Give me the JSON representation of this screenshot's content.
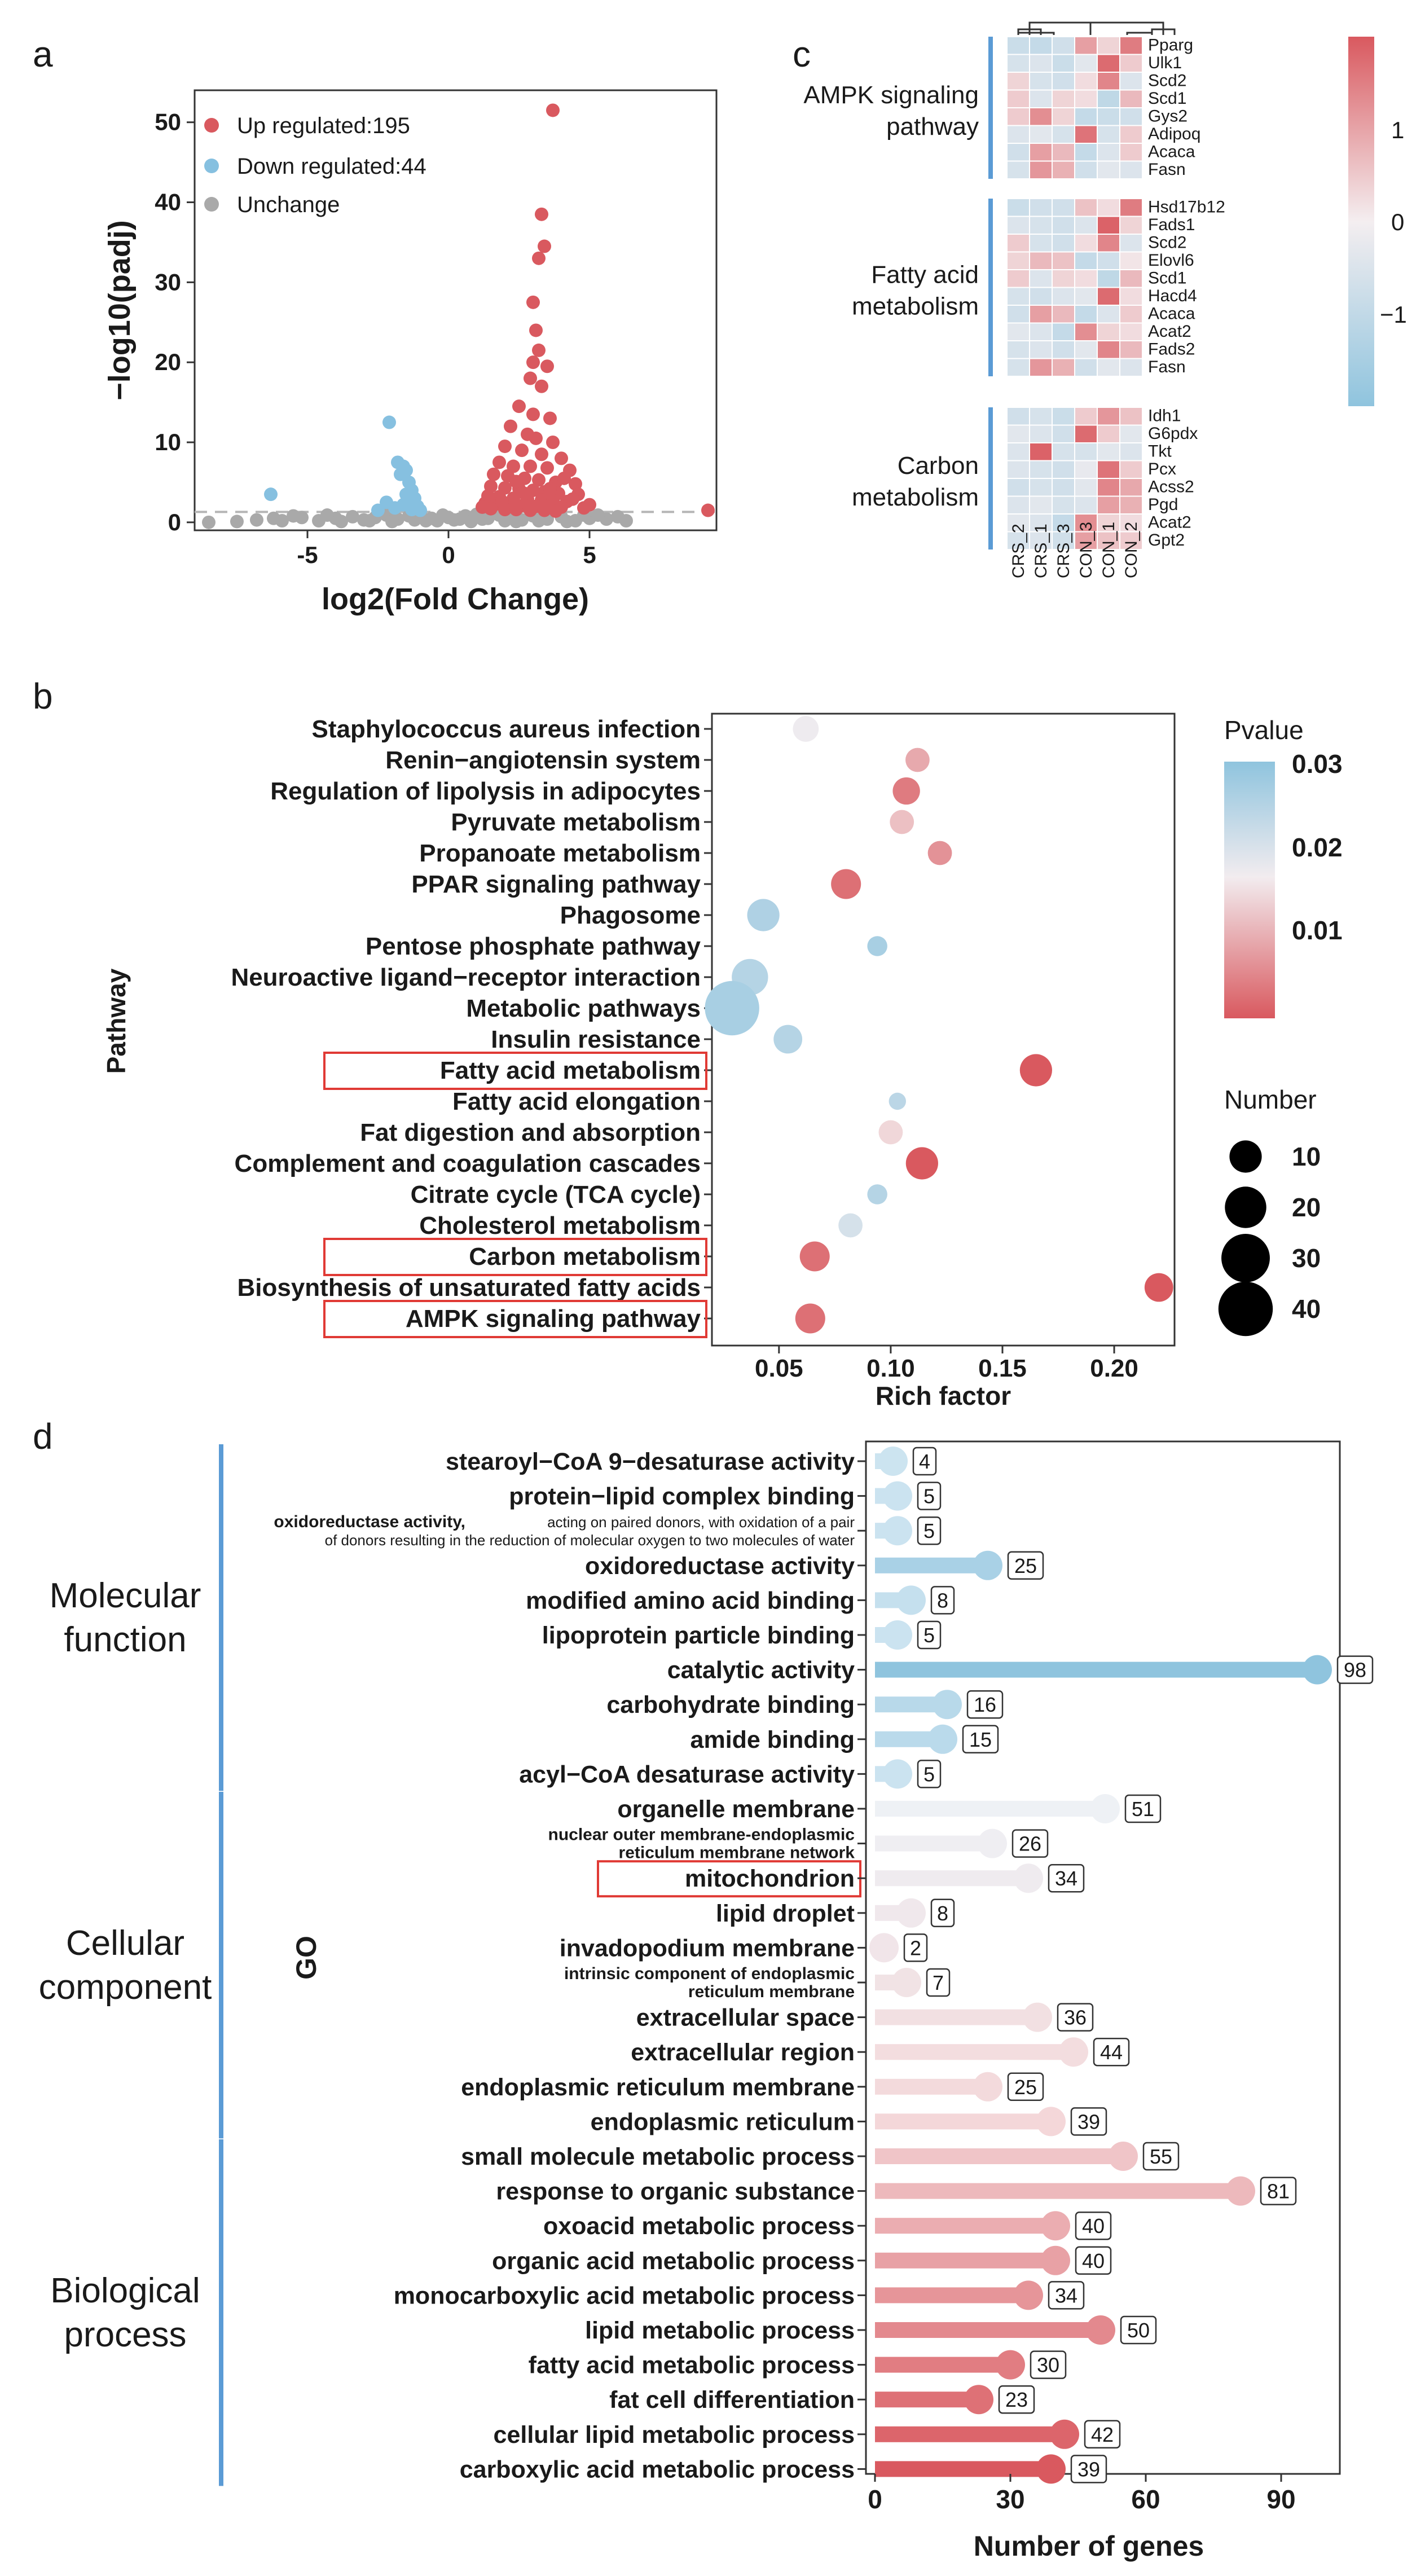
{
  "panels": {
    "a": "a",
    "b": "b",
    "c": "c",
    "d": "d"
  },
  "volcano": {
    "type": "scatter",
    "xlabel": "log2(Fold Change)",
    "ylabel": "−log10(padj)",
    "xlim": [
      -9,
      9.5
    ],
    "ylim": [
      -1,
      54
    ],
    "xticks": [
      -5,
      0,
      5
    ],
    "yticks": [
      0,
      10,
      20,
      30,
      40,
      50
    ],
    "threshold": 1.3,
    "legend": [
      {
        "label": "Up regulated:195",
        "color": "#d9595f"
      },
      {
        "label": "Down regulated:44",
        "color": "#86c0e0"
      },
      {
        "label": "Unchange",
        "color": "#a9a9a9"
      }
    ],
    "up": [
      [
        3.7,
        51.5
      ],
      [
        3.3,
        38.5
      ],
      [
        3.4,
        34.5
      ],
      [
        3.2,
        33
      ],
      [
        3.0,
        27.5
      ],
      [
        3.1,
        24
      ],
      [
        3.2,
        21.5
      ],
      [
        3.0,
        20
      ],
      [
        3.5,
        19.5
      ],
      [
        2.9,
        18
      ],
      [
        3.3,
        17
      ],
      [
        2.5,
        14.5
      ],
      [
        3.0,
        13.5
      ],
      [
        3.6,
        13
      ],
      [
        2.2,
        12
      ],
      [
        2.8,
        11
      ],
      [
        3.1,
        10.5
      ],
      [
        3.7,
        10
      ],
      [
        2.0,
        9.5
      ],
      [
        2.6,
        9
      ],
      [
        3.3,
        8.5
      ],
      [
        4.0,
        8
      ],
      [
        1.8,
        7.5
      ],
      [
        2.3,
        7
      ],
      [
        2.9,
        7
      ],
      [
        3.5,
        6.8
      ],
      [
        4.3,
        6.5
      ],
      [
        1.6,
        6
      ],
      [
        2.1,
        5.8
      ],
      [
        2.7,
        5.5
      ],
      [
        3.2,
        5.3
      ],
      [
        3.8,
        5
      ],
      [
        4.5,
        4.8
      ],
      [
        1.5,
        4.5
      ],
      [
        2.0,
        4.3
      ],
      [
        2.5,
        4.2
      ],
      [
        3.0,
        4
      ],
      [
        3.4,
        3.8
      ],
      [
        3.9,
        3.6
      ],
      [
        4.6,
        3.5
      ],
      [
        1.4,
        3.3
      ],
      [
        1.8,
        3.2
      ],
      [
        2.3,
        3
      ],
      [
        2.8,
        2.9
      ],
      [
        3.3,
        2.8
      ],
      [
        3.7,
        2.7
      ],
      [
        4.2,
        2.6
      ],
      [
        1.3,
        2.4
      ],
      [
        1.7,
        2.3
      ],
      [
        2.2,
        2.2
      ],
      [
        2.6,
        2.1
      ],
      [
        3.1,
        2
      ],
      [
        3.5,
        2
      ],
      [
        4.0,
        1.9
      ],
      [
        4.8,
        1.8
      ],
      [
        1.5,
        1.7
      ],
      [
        2.0,
        1.6
      ],
      [
        2.4,
        1.6
      ],
      [
        2.9,
        1.5
      ],
      [
        3.4,
        1.5
      ],
      [
        3.8,
        1.4
      ],
      [
        9.2,
        1.5
      ],
      [
        5.0,
        2.2
      ],
      [
        1.9,
        2.6
      ],
      [
        2.7,
        3.6
      ],
      [
        3.6,
        4.2
      ],
      [
        4.1,
        5.5
      ],
      [
        2.4,
        5.1
      ],
      [
        1.2,
        1.9
      ],
      [
        4.4,
        2.9
      ]
    ],
    "down": [
      [
        -2.1,
        12.5
      ],
      [
        -1.8,
        7.5
      ],
      [
        -1.6,
        7
      ],
      [
        -1.5,
        6.5
      ],
      [
        -1.7,
        6
      ],
      [
        -1.4,
        5
      ],
      [
        -1.3,
        4
      ],
      [
        -1.5,
        3.5
      ],
      [
        -1.2,
        3
      ],
      [
        -1.4,
        2.6
      ],
      [
        -2.2,
        2.5
      ],
      [
        -1.6,
        2.2
      ],
      [
        -6.3,
        3.5
      ],
      [
        -1.1,
        2
      ],
      [
        -1.9,
        1.8
      ],
      [
        -1.3,
        1.6
      ],
      [
        -2.5,
        1.5
      ],
      [
        -1.0,
        1.5
      ]
    ],
    "unchange": [
      [
        -8.5,
        0
      ],
      [
        -6.8,
        0.3
      ],
      [
        -5.9,
        0.2
      ],
      [
        -5.2,
        0.6
      ],
      [
        -4.6,
        0.2
      ],
      [
        -4.0,
        0.5
      ],
      [
        -3.4,
        0.7
      ],
      [
        -3.0,
        0.3
      ],
      [
        -2.6,
        0.6
      ],
      [
        -2.2,
        0.9
      ],
      [
        -1.8,
        0.4
      ],
      [
        -1.4,
        0.8
      ],
      [
        -1.0,
        1.0
      ],
      [
        -0.6,
        0.5
      ],
      [
        -0.2,
        0.9
      ],
      [
        0.2,
        0.3
      ],
      [
        0.6,
        0.8
      ],
      [
        1.0,
        1.0
      ],
      [
        1.4,
        0.5
      ],
      [
        1.8,
        0.9
      ],
      [
        2.2,
        0.6
      ],
      [
        2.6,
        0.3
      ],
      [
        3.0,
        0.8
      ],
      [
        3.5,
        0.4
      ],
      [
        4.0,
        0.7
      ],
      [
        4.5,
        0.2
      ],
      [
        5.0,
        0.5
      ],
      [
        5.6,
        0.4
      ],
      [
        6.3,
        0.2
      ],
      [
        -7.5,
        0.1
      ],
      [
        -3.8,
        0.1
      ],
      [
        -2.0,
        0.1
      ],
      [
        -0.8,
        0.2
      ],
      [
        0.8,
        0.1
      ],
      [
        2.4,
        0.1
      ],
      [
        4.2,
        0.1
      ],
      [
        -5.5,
        0.8
      ],
      [
        5.3,
        0.9
      ],
      [
        -1.2,
        0.3
      ],
      [
        1.2,
        0.4
      ],
      [
        0.0,
        0.6
      ],
      [
        -0.4,
        0.2
      ],
      [
        0.4,
        0.4
      ],
      [
        2.0,
        0.2
      ],
      [
        -2.8,
        0.2
      ],
      [
        3.2,
        0.2
      ],
      [
        -4.3,
        0.9
      ],
      [
        4.8,
        0.9
      ],
      [
        6.0,
        0.7
      ],
      [
        -6.2,
        0.5
      ]
    ]
  },
  "heatmap": {
    "type": "heatmap",
    "columns": [
      "CRS_2",
      "CRS_1",
      "CRS_3",
      "CON_3",
      "CON_1",
      "CON_2"
    ],
    "legend_ticks": [
      "1",
      "0",
      "−1"
    ],
    "groups": [
      {
        "name_line1": "AMPK signaling",
        "name_line2": "pathway",
        "genes": [
          "Pparg",
          "Ulk1",
          "Scd2",
          "Scd1",
          "Gys2",
          "Adipoq",
          "Acaca",
          "Fasn"
        ],
        "values": [
          [
            -0.7,
            -0.8,
            -0.6,
            0.9,
            0.3,
            1.3
          ],
          [
            -0.5,
            -0.4,
            -0.7,
            -0.3,
            1.5,
            0.4
          ],
          [
            0.3,
            -0.5,
            -0.6,
            0.2,
            1.2,
            -0.4
          ],
          [
            0.4,
            -0.4,
            0.3,
            0.2,
            -0.9,
            0.6
          ],
          [
            0.4,
            1.1,
            0.3,
            -0.8,
            -0.7,
            -0.6
          ],
          [
            -0.4,
            -0.3,
            -0.5,
            1.4,
            -0.5,
            0.4
          ],
          [
            -0.6,
            0.9,
            0.6,
            -0.8,
            -0.4,
            0.4
          ],
          [
            -0.5,
            1.0,
            0.7,
            -0.6,
            -0.3,
            -0.4
          ]
        ]
      },
      {
        "name_line1": "Fatty acid",
        "name_line2": "metabolism",
        "genes": [
          "Hsd17b12",
          "Fads1",
          "Scd2",
          "Elovl6",
          "Scd1",
          "Hacd4",
          "Acaca",
          "Acat2",
          "Fads2",
          "Fasn"
        ],
        "values": [
          [
            -0.7,
            -0.6,
            -0.6,
            0.5,
            0.2,
            1.3
          ],
          [
            -0.4,
            -0.5,
            -0.6,
            -0.4,
            1.6,
            0.3
          ],
          [
            0.4,
            -0.5,
            -0.6,
            0.2,
            1.2,
            -0.4
          ],
          [
            0.3,
            0.6,
            0.5,
            -0.8,
            -0.6,
            0.1
          ],
          [
            0.4,
            -0.4,
            0.3,
            0.2,
            -0.9,
            0.6
          ],
          [
            -0.5,
            -0.6,
            -0.4,
            -0.3,
            1.5,
            0.2
          ],
          [
            -0.6,
            0.9,
            0.6,
            -0.8,
            -0.4,
            0.4
          ],
          [
            -0.3,
            -0.4,
            -0.8,
            1.1,
            0.3,
            0.2
          ],
          [
            -0.5,
            -0.4,
            -0.6,
            -0.3,
            1.2,
            0.6
          ],
          [
            -0.5,
            1.0,
            0.7,
            -0.6,
            -0.3,
            -0.4
          ]
        ]
      },
      {
        "name_line1": "Carbon",
        "name_line2": "metabolism",
        "genes": [
          "Idh1",
          "G6pdx",
          "Tkt",
          "Pcx",
          "Acss2",
          "Pgd",
          "Acat2",
          "Gpt2"
        ],
        "values": [
          [
            -0.6,
            -0.5,
            -0.7,
            0.4,
            1.0,
            0.5
          ],
          [
            -0.3,
            -0.4,
            -0.6,
            1.5,
            0.4,
            -0.3
          ],
          [
            -0.4,
            1.6,
            -0.5,
            -0.5,
            -0.3,
            -0.4
          ],
          [
            -0.4,
            -0.5,
            -0.6,
            -0.2,
            1.4,
            0.4
          ],
          [
            -0.6,
            -0.5,
            -0.6,
            -0.3,
            1.2,
            0.8
          ],
          [
            -0.4,
            -0.3,
            -0.5,
            -0.4,
            0.9,
            0.7
          ],
          [
            -0.3,
            -0.4,
            -0.8,
            1.1,
            0.3,
            0.2
          ],
          [
            -0.5,
            -0.4,
            -0.6,
            0.9,
            0.5,
            0.4
          ]
        ]
      }
    ]
  },
  "kegg": {
    "type": "scatter",
    "xlabel": "Rich factor",
    "ylabel": "Pathway",
    "xlim": [
      0.02,
      0.227
    ],
    "xticks": [
      "0.05",
      "0.10",
      "0.15",
      "0.20"
    ],
    "xtick_values": [
      0.05,
      0.1,
      0.15,
      0.2
    ],
    "pvalue_legend_title": "Pvalue",
    "pvalue_ticks": [
      "0.03",
      "0.02",
      "0.01"
    ],
    "number_legend_title": "Number",
    "number_ticks": [
      "10",
      "20",
      "30",
      "40"
    ],
    "pathways": [
      {
        "name": "Staphylococcus aureus infection",
        "rich": 0.062,
        "count": 5,
        "p": 0.015,
        "highlight": false
      },
      {
        "name": "Renin−angiotensin system",
        "rich": 0.112,
        "count": 4,
        "p": 0.008,
        "highlight": false
      },
      {
        "name": "Regulation of lipolysis in adipocytes",
        "rich": 0.107,
        "count": 6,
        "p": 0.004,
        "highlight": false
      },
      {
        "name": "Pyruvate metabolism",
        "rich": 0.105,
        "count": 4,
        "p": 0.01,
        "highlight": false
      },
      {
        "name": "Propanoate metabolism",
        "rich": 0.122,
        "count": 4,
        "p": 0.006,
        "highlight": false
      },
      {
        "name": "PPAR signaling pathway",
        "rich": 0.08,
        "count": 8,
        "p": 0.003,
        "highlight": false
      },
      {
        "name": "Phagosome",
        "rich": 0.043,
        "count": 10,
        "p": 0.025,
        "highlight": false
      },
      {
        "name": "Pentose phosphate pathway",
        "rich": 0.094,
        "count": 2,
        "p": 0.026,
        "highlight": false
      },
      {
        "name": "Neuroactive ligand−receptor interaction",
        "rich": 0.037,
        "count": 14,
        "p": 0.024,
        "highlight": false
      },
      {
        "name": "Metabolic pathways",
        "rich": 0.029,
        "count": 40,
        "p": 0.026,
        "highlight": false
      },
      {
        "name": "Insulin resistance",
        "rich": 0.054,
        "count": 7,
        "p": 0.024,
        "highlight": false
      },
      {
        "name": "Fatty acid metabolism",
        "rich": 0.165,
        "count": 10,
        "p": 0.001,
        "highlight": true
      },
      {
        "name": "Fatty acid elongation",
        "rich": 0.103,
        "count": 1,
        "p": 0.023,
        "highlight": false
      },
      {
        "name": "Fat digestion and absorption",
        "rich": 0.1,
        "count": 4,
        "p": 0.012,
        "highlight": false
      },
      {
        "name": "Complement and coagulation cascades",
        "rich": 0.114,
        "count": 10,
        "p": 0.001,
        "highlight": false
      },
      {
        "name": "Citrate cycle (TCA cycle)",
        "rich": 0.094,
        "count": 2,
        "p": 0.024,
        "highlight": false
      },
      {
        "name": "Cholesterol metabolism",
        "rich": 0.082,
        "count": 4,
        "p": 0.019,
        "highlight": false
      },
      {
        "name": "Carbon metabolism",
        "rich": 0.066,
        "count": 8,
        "p": 0.003,
        "highlight": true
      },
      {
        "name": "Biosynthesis of unsaturated fatty acids",
        "rich": 0.22,
        "count": 7,
        "p": 0.001,
        "highlight": false
      },
      {
        "name": "AMPK signaling pathway",
        "rich": 0.064,
        "count": 8,
        "p": 0.003,
        "highlight": true
      }
    ]
  },
  "go": {
    "type": "bar",
    "xlabel": "Number of genes",
    "ylabel": "GO",
    "xticks": [
      "0",
      "30",
      "60",
      "90"
    ],
    "xtick_values": [
      0,
      30,
      60,
      90
    ],
    "xlim": [
      -2,
      103
    ],
    "categories": [
      {
        "line1": "Molecular",
        "line2": "function",
        "start": 0,
        "end": 9
      },
      {
        "line1": "Cellular",
        "line2": "component",
        "start": 10,
        "end": 19
      },
      {
        "line1": "Biological",
        "line2": "process",
        "start": 20,
        "end": 29
      }
    ],
    "terms": [
      {
        "name": "stearoyl−CoA 9−desaturase activity",
        "count": 4,
        "style": "normal"
      },
      {
        "name": "protein−lipid complex binding",
        "count": 5,
        "style": "normal"
      },
      {
        "name": "oxidoreductase activity,",
        "name_rest": " acting on paired donors, with oxidation of a pair",
        "name2": "of donors resulting in the reduction of molecular oxygen to two molecules of water",
        "count": 5,
        "style": "small"
      },
      {
        "name": "oxidoreductase activity",
        "count": 25,
        "style": "normal"
      },
      {
        "name": "modified amino acid binding",
        "count": 8,
        "style": "normal"
      },
      {
        "name": "lipoprotein particle binding",
        "count": 5,
        "style": "normal"
      },
      {
        "name": "catalytic activity",
        "count": 98,
        "style": "normal"
      },
      {
        "name": "carbohydrate binding",
        "count": 16,
        "style": "normal"
      },
      {
        "name": "amide binding",
        "count": 15,
        "style": "normal"
      },
      {
        "name": "acyl−CoA desaturase activity",
        "count": 5,
        "style": "normal"
      },
      {
        "name": "organelle membrane",
        "count": 51,
        "style": "normal"
      },
      {
        "name": "nuclear outer membrane-endoplasmic",
        "name2": "reticulum membrane network",
        "count": 26,
        "style": "small"
      },
      {
        "name": "mitochondrion",
        "count": 34,
        "style": "highlight"
      },
      {
        "name": "lipid droplet",
        "count": 8,
        "style": "normal"
      },
      {
        "name": "invadopodium membrane",
        "count": 2,
        "style": "normal"
      },
      {
        "name": "intrinsic component of endoplasmic",
        "name2": "reticulum membrane",
        "count": 7,
        "style": "small"
      },
      {
        "name": "extracellular space",
        "count": 36,
        "style": "normal"
      },
      {
        "name": "extracellular region",
        "count": 44,
        "style": "normal"
      },
      {
        "name": "endoplasmic reticulum membrane",
        "count": 25,
        "style": "normal"
      },
      {
        "name": "endoplasmic reticulum",
        "count": 39,
        "style": "normal"
      },
      {
        "name": "small molecule metabolic process",
        "count": 55,
        "style": "normal"
      },
      {
        "name": "response to organic substance",
        "count": 81,
        "style": "normal"
      },
      {
        "name": "oxoacid metabolic process",
        "count": 40,
        "style": "normal"
      },
      {
        "name": "organic acid metabolic process",
        "count": 40,
        "style": "normal"
      },
      {
        "name": "monocarboxylic acid metabolic process",
        "count": 34,
        "style": "normal"
      },
      {
        "name": "lipid metabolic process",
        "count": 50,
        "style": "normal"
      },
      {
        "name": "fatty acid metabolic process",
        "count": 30,
        "style": "normal"
      },
      {
        "name": "fat cell differentiation",
        "count": 23,
        "style": "normal"
      },
      {
        "name": "cellular lipid metabolic process",
        "count": 42,
        "style": "normal"
      },
      {
        "name": "carboxylic acid metabolic process",
        "count": 39,
        "style": "normal"
      }
    ]
  },
  "colors": {
    "up": "#d9595f",
    "down": "#86c0e0",
    "neutral": "#a9a9a9",
    "high": "#d9595f",
    "mid": "#f4eef0",
    "low": "#8fc4de",
    "highlight_box": "#e03a35",
    "category_bar": "#5b9bd5"
  }
}
